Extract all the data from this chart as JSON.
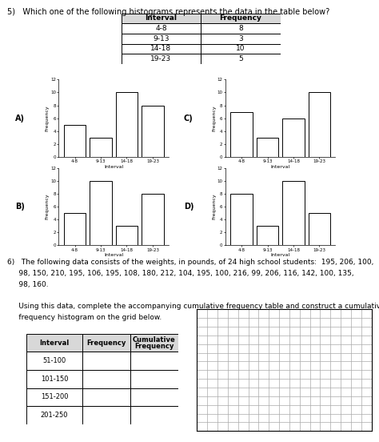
{
  "q5_text": "5)   Which one of the following histograms represents the data in the table below?",
  "q5_table_headers": [
    "Interval",
    "Frequency"
  ],
  "q5_table_data": [
    [
      "4-8",
      "8"
    ],
    [
      "9-13",
      "3"
    ],
    [
      "14-18",
      "10"
    ],
    [
      "19-23",
      "5"
    ]
  ],
  "hist_A": [
    5,
    3,
    10,
    8
  ],
  "hist_B": [
    5,
    10,
    3,
    8
  ],
  "hist_C": [
    7,
    3,
    6,
    10
  ],
  "hist_D": [
    8,
    3,
    10,
    5
  ],
  "hist_categories": [
    "4-8",
    "9-13",
    "14-18",
    "19-23"
  ],
  "q6_line1": "6)   The following data consists of the weights, in pounds, of 24 high school students:  195, 206, 100,",
  "q6_line2": "     98, 150, 210, 195, 106, 195, 108, 180, 212, 104, 195, 100, 216, 99, 206, 116, 142, 100, 135,",
  "q6_line3": "     98, 160.",
  "q6_line4": "     Using this data, complete the accompanying cumulative frequency table and construct a cumulative",
  "q6_line5": "     frequency histogram on the grid below.",
  "q6_table_headers": [
    "Interval",
    "Frequency",
    "Cumulative\nFrequency"
  ],
  "q6_table_rows": [
    "51-100",
    "101-150",
    "151-200",
    "201-250"
  ],
  "grid_rows": 14,
  "grid_cols": 17,
  "bg_color": "#ffffff",
  "bar_color": "#ffffff",
  "bar_edge": "#000000",
  "text_color": "#000000",
  "font_size": 7.0
}
